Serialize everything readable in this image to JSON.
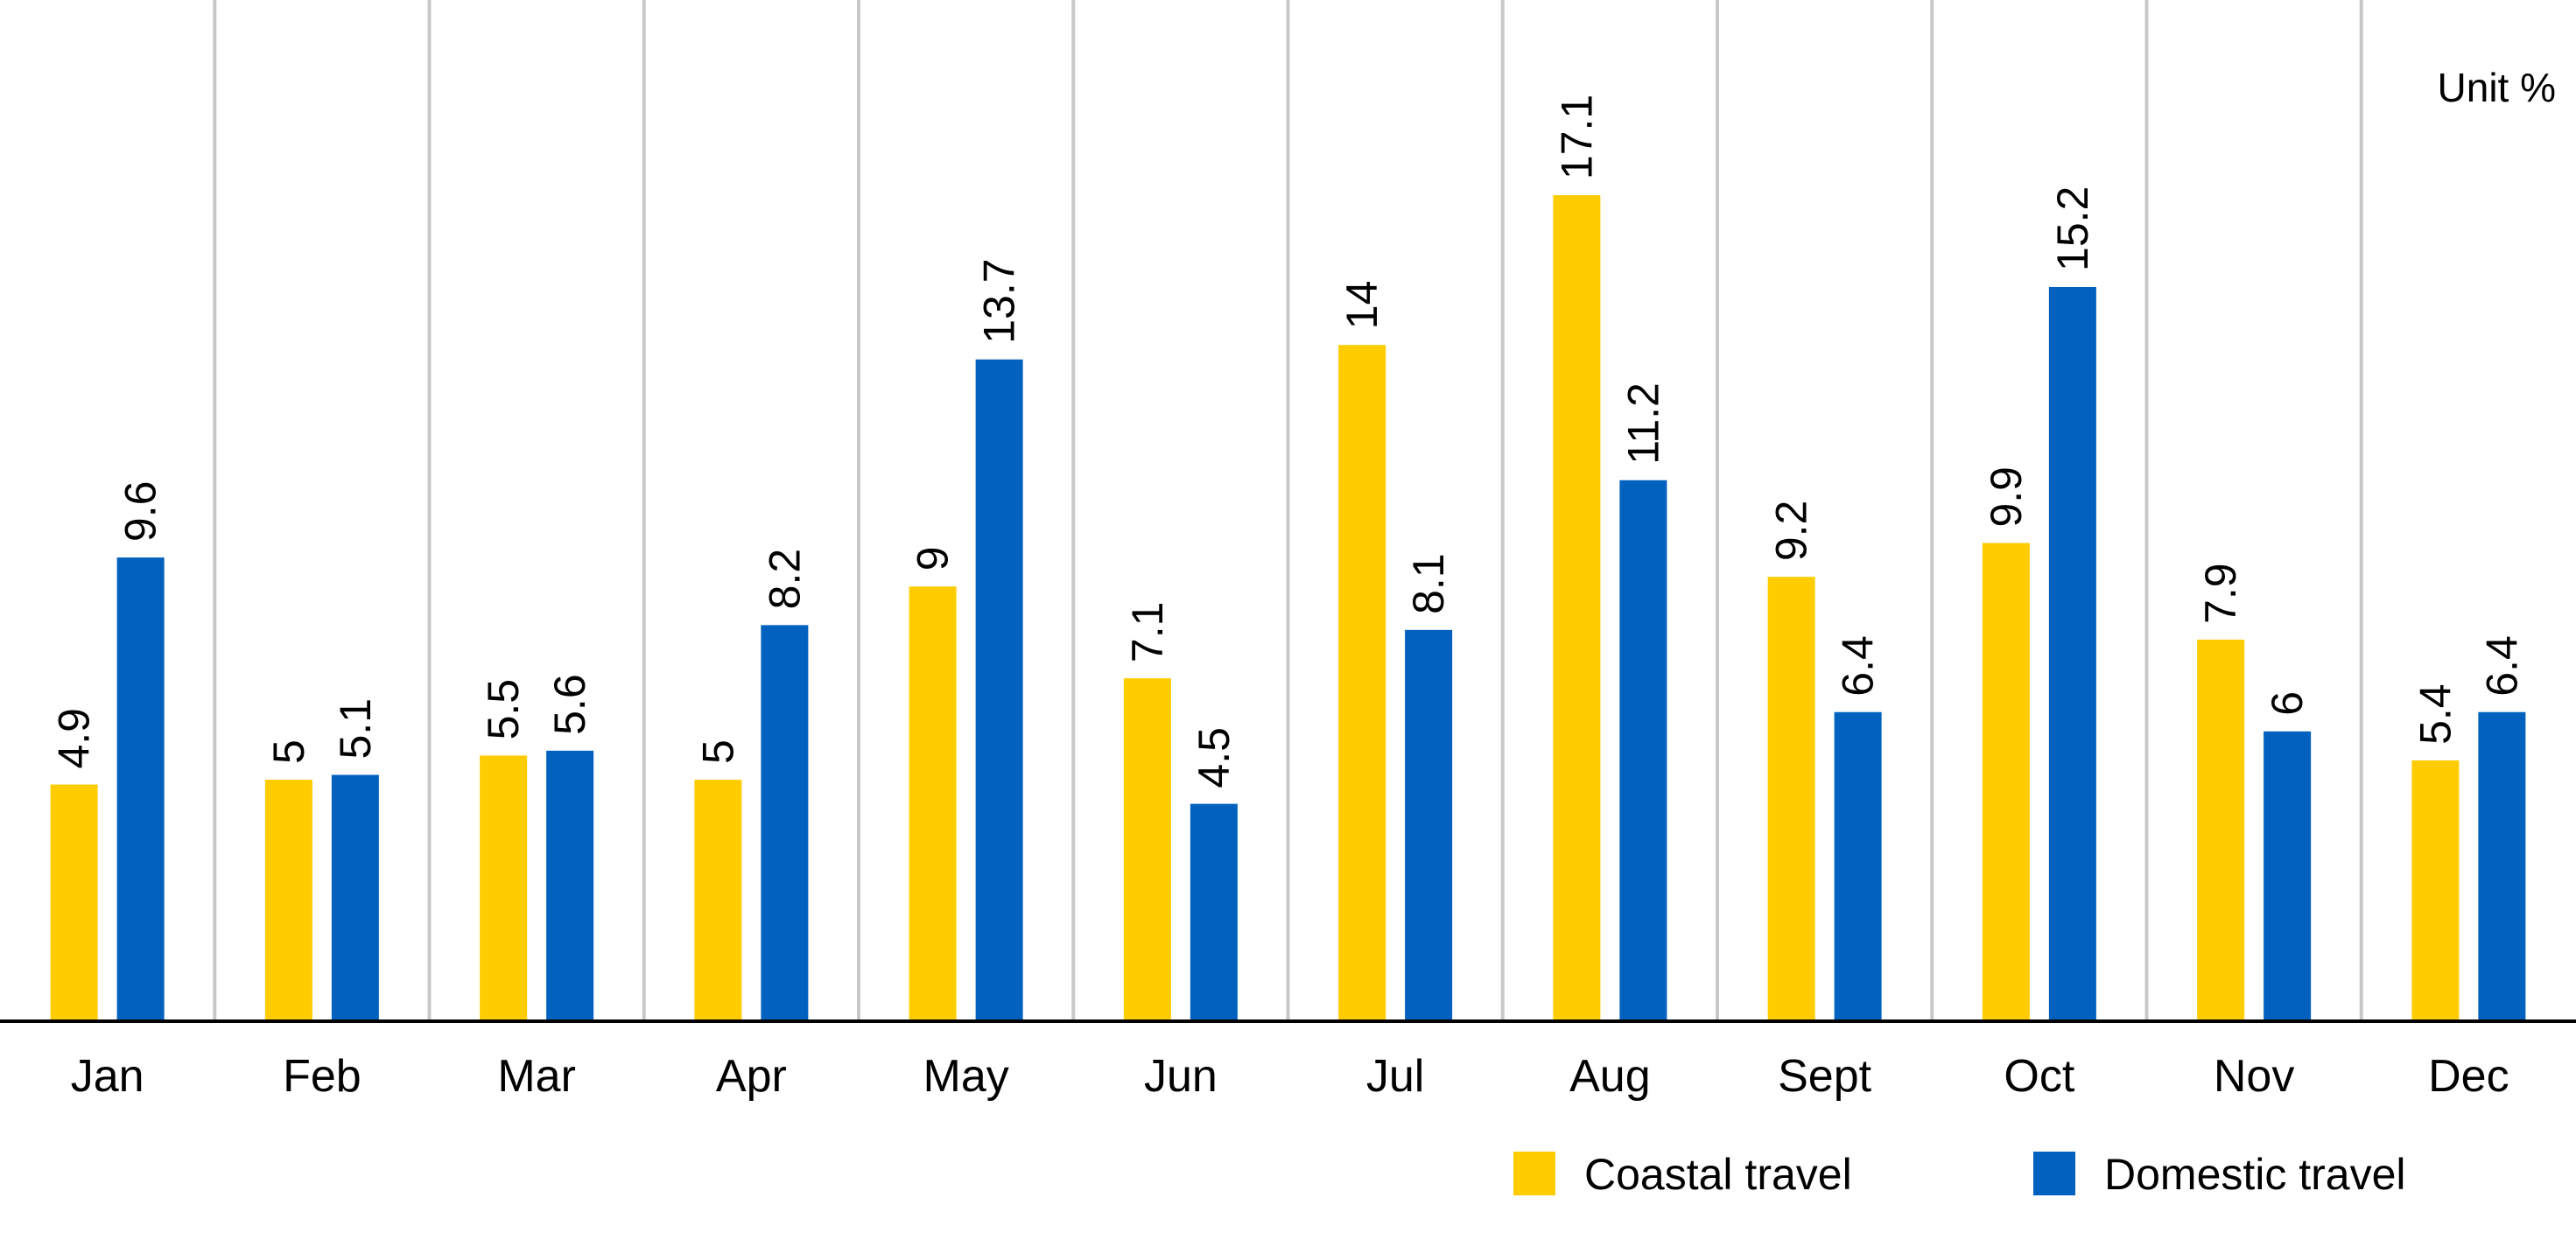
{
  "chart_data": {
    "type": "bar",
    "categories": [
      "Jan",
      "Feb",
      "Mar",
      "Apr",
      "May",
      "Jun",
      "Jul",
      "Aug",
      "Sept",
      "Oct",
      "Nov",
      "Dec"
    ],
    "series": [
      {
        "name": "Coastal travel",
        "color": "#FFCC00",
        "values": [
          4.9,
          5,
          5.5,
          5,
          9,
          7.1,
          14,
          17.1,
          9.2,
          9.9,
          7.9,
          5.4
        ],
        "labels": [
          "4.9",
          "5",
          "5.5",
          "5",
          "9",
          "7.1",
          "14",
          "17.1",
          "9.2",
          "9.9",
          "7.9",
          "5.4"
        ]
      },
      {
        "name": "Domestic travel",
        "color": "#0062BE",
        "values": [
          9.6,
          5.1,
          5.6,
          8.2,
          13.7,
          4.5,
          8.1,
          11.2,
          6.4,
          15.2,
          6,
          6.4
        ],
        "labels": [
          "9.6",
          "5.1",
          "5.6",
          "8.2",
          "13.7",
          "4.5",
          "8.1",
          "11.2",
          "6.4",
          "15.2",
          "6",
          "6.4"
        ]
      }
    ],
    "unit_label": "Unit %",
    "legend_position": "bottom-right",
    "grid": "vertical category separators",
    "ylim": [
      0,
      20
    ]
  }
}
